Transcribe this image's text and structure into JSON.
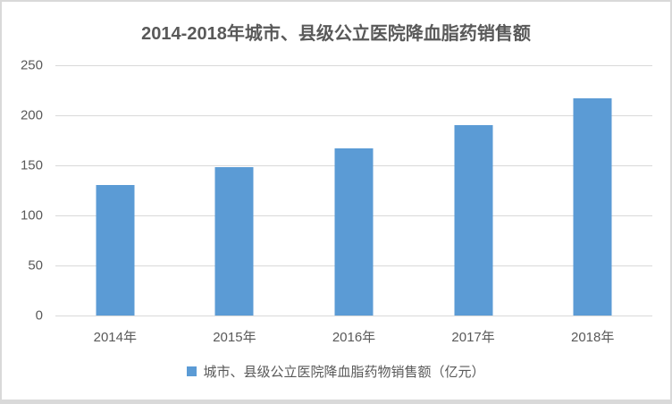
{
  "window": {
    "background_color": "#FFFFFF",
    "frame_border_color": "#D9D9D9"
  },
  "chart_data": {
    "type": "bar",
    "title": "2014-2018年城市、县级公立医院降血脂药销售额",
    "categories": [
      "2014年",
      "2015年",
      "2016年",
      "2017年",
      "2018年"
    ],
    "series": [
      {
        "name": "城市、县级公立医院降血脂药物销售额（亿元）",
        "values": [
          130,
          148,
          167,
          190,
          217
        ]
      }
    ],
    "xlabel": "",
    "ylabel": "",
    "ylim": [
      0,
      250
    ],
    "yticks": [
      0,
      50,
      100,
      150,
      200,
      250
    ],
    "grid": true,
    "legend_position": "bottom",
    "colors": {
      "bar": "#5B9BD5",
      "gridline": "#D9D9D9",
      "text": "#595959",
      "title_text": "#595959"
    }
  },
  "legend": {
    "marker_icon": "legend-square-icon",
    "label": "城市、县级公立医院降血脂药物销售额（亿元）"
  }
}
